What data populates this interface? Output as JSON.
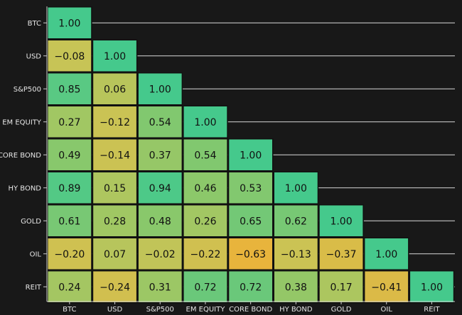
{
  "chart_data": {
    "type": "heatmap",
    "title": "",
    "xlabel": "",
    "ylabel": "",
    "grid": true,
    "labels": [
      "BTC",
      "USD",
      "S&P500",
      "EM EQUITY",
      "CORE BOND",
      "HY BOND",
      "GOLD",
      "OIL",
      "REIT"
    ],
    "value_format": "2 decimals, minus sign shown as '−'",
    "matrix": [
      [
        1.0
      ],
      [
        -0.08,
        1.0
      ],
      [
        0.85,
        0.06,
        1.0
      ],
      [
        0.27,
        -0.12,
        0.54,
        1.0
      ],
      [
        0.49,
        -0.14,
        0.37,
        0.54,
        1.0
      ],
      [
        0.89,
        0.15,
        0.94,
        0.46,
        0.53,
        1.0
      ],
      [
        0.61,
        0.28,
        0.48,
        0.26,
        0.65,
        0.62,
        1.0
      ],
      [
        -0.2,
        0.07,
        -0.02,
        -0.22,
        -0.63,
        -0.13,
        -0.37,
        1.0
      ],
      [
        0.24,
        -0.24,
        0.31,
        0.72,
        0.72,
        0.38,
        0.17,
        -0.41,
        1.0
      ]
    ],
    "color_scale": {
      "low_value": -0.63,
      "high_value": 1.0,
      "stops": [
        "#e8b43c",
        "#c8c456",
        "#8cc86a",
        "#45c98c"
      ]
    }
  }
}
